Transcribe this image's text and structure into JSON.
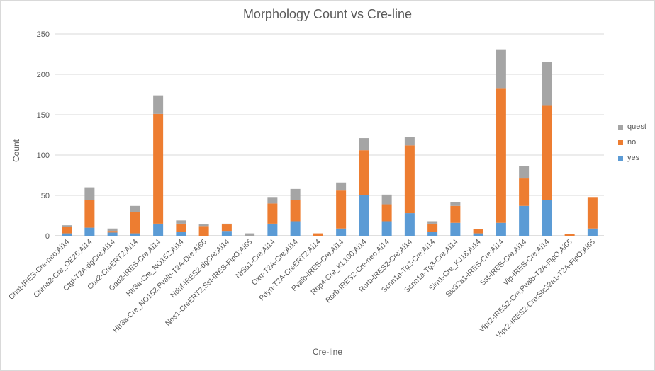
{
  "chart_data": {
    "type": "bar",
    "stacked": true,
    "title": "Morphology Count vs Cre-line",
    "xlabel": "Cre-line",
    "ylabel": "Count",
    "ylim": [
      0,
      250
    ],
    "yticks": [
      0,
      50,
      100,
      150,
      200,
      250
    ],
    "grid": true,
    "legend_position": "right",
    "categories": [
      "Chat-IRES-Cre-neo;Ai14",
      "Chrna2-Cre_OE25;Ai14",
      "Ctgf-T2A-dgCre;Ai14",
      "Cux2-CreERT2;Ai14",
      "Gad2-IRES-Cre;Ai14",
      "Htr3a-Cre_NO152;Ai14",
      "Htr3a-Cre_NO152;Pvalb-T2A-Dre;Ai66",
      "Ndnf-IRES2-dgCre;Ai14",
      "Nos1-CreERT2;Sst-IRES-FlpO;Ai65",
      "Nr5a1-Cre;Ai14",
      "Oxtr-T2A-Cre;Ai14",
      "Pdyn-T2A-CreERT2;Ai14",
      "Pvalb-IRES-Cre;Ai14",
      "Rbp4-Cre_KL100;Ai14",
      "Rorb-IRES2-Cre-neo;Ai14",
      "Rorb-IRES2-Cre;Ai14",
      "Scnn1a-Tg2-Cre;Ai14",
      "Scnn1a-Tg3-Cre;Ai14",
      "Sim1-Cre_KJ18;Ai14",
      "Slc32a1-IRES-Cre;Ai14",
      "Sst-IRES-Cre;Ai14",
      "Vip-IRES-Cre;Ai14",
      "Vipr2-IRES2-Cre;Pvalb-T2A-FlpO;Ai65",
      "Vipr2-IRES2-Cre;Slc32a1-T2A-FlpO;Ai65"
    ],
    "series": [
      {
        "name": "yes",
        "color": "#5b9bd5",
        "values": [
          3,
          10,
          4,
          3,
          15,
          5,
          0,
          6,
          0,
          15,
          18,
          0,
          9,
          50,
          18,
          28,
          5,
          16,
          3,
          16,
          37,
          44,
          0,
          9
        ]
      },
      {
        "name": "no",
        "color": "#ed7d31",
        "values": [
          8,
          34,
          2,
          26,
          136,
          10,
          12,
          8,
          0,
          25,
          26,
          3,
          47,
          56,
          21,
          84,
          10,
          21,
          5,
          167,
          34,
          117,
          2,
          39
        ]
      },
      {
        "name": "quest",
        "color": "#a5a5a5",
        "values": [
          2,
          16,
          3,
          8,
          23,
          4,
          2,
          1,
          3,
          8,
          14,
          0,
          10,
          15,
          12,
          10,
          3,
          5,
          0,
          48,
          15,
          54,
          0,
          0
        ]
      }
    ]
  }
}
